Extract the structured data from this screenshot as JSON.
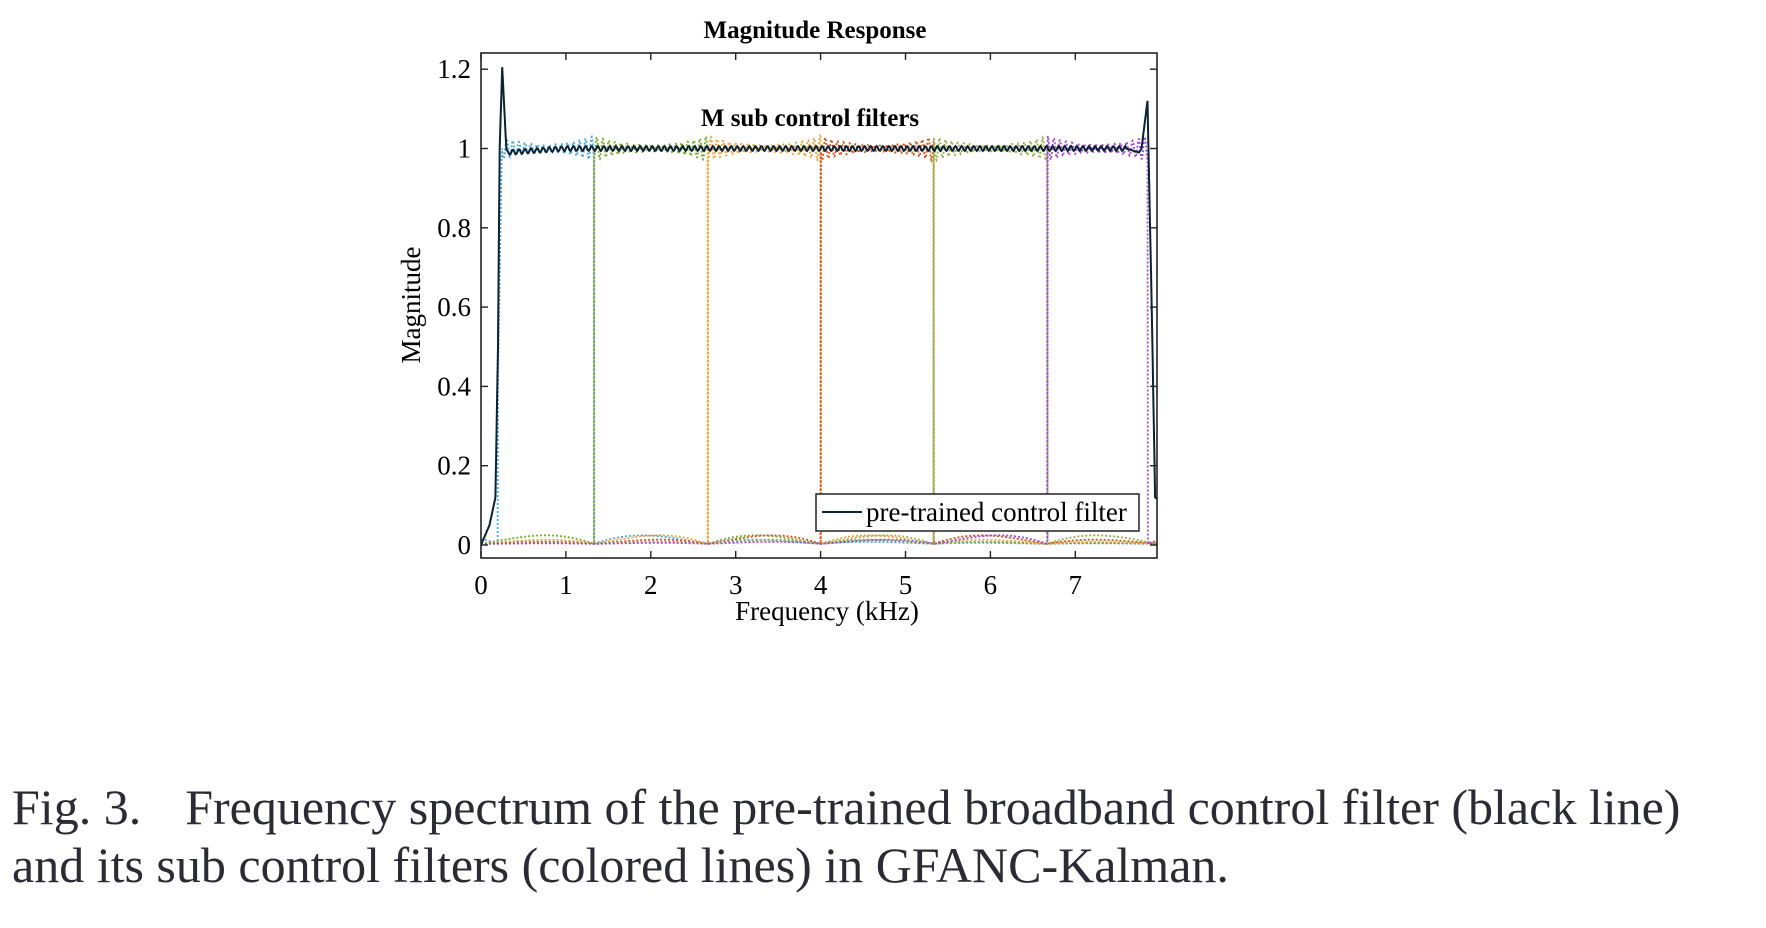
{
  "chart_data": {
    "type": "line",
    "title": "Magnitude Response",
    "xlabel": "Frequency (kHz)",
    "ylabel": "Magnitude",
    "xlim": [
      0,
      8
    ],
    "ylim": [
      -0.03,
      1.24
    ],
    "x_ticks": [
      0,
      1,
      2,
      3,
      4,
      5,
      6,
      7
    ],
    "y_ticks": [
      0,
      0.2,
      0.4,
      0.6,
      0.8,
      1
    ],
    "y_tick_labels": [
      "0",
      "0.2",
      "0.4",
      "0.6",
      "0.8",
      "1",
      "1.2"
    ],
    "y_tick_values": [
      0,
      0.2,
      0.4,
      0.6,
      0.8,
      1,
      1.2
    ],
    "annotation": "M sub control filters",
    "legend": {
      "position": "bottom-right",
      "entries": [
        "pre-trained control filter"
      ]
    },
    "series": [
      {
        "name": "pre-trained control filter",
        "color": "#0b2233",
        "style": "solid",
        "x": [
          0,
          0.1,
          0.17,
          0.2,
          0.22,
          0.25,
          0.3,
          1,
          4,
          7,
          7.6,
          7.75,
          7.78,
          7.85,
          7.9,
          7.94,
          8.0
        ],
        "y": [
          0,
          0.05,
          0.12,
          0.5,
          1.0,
          1.205,
          0.99,
          1.0,
          1.0,
          1.0,
          1.0,
          0.99,
          1.0,
          1.12,
          0.6,
          0.12,
          0.11
        ]
      },
      {
        "color": "#4aa7dd",
        "style": "dotted",
        "band": [
          0.2,
          1.33
        ]
      },
      {
        "color": "#77ac30",
        "style": "dotted",
        "band": [
          1.33,
          2.67
        ]
      },
      {
        "color": "#f0a33a",
        "style": "dotted",
        "band": [
          2.67,
          4.0
        ]
      },
      {
        "color": "#d95319",
        "style": "dotted",
        "band": [
          4.0,
          5.33
        ]
      },
      {
        "color": "#9ab04a",
        "style": "dotted",
        "band": [
          5.33,
          6.67
        ]
      },
      {
        "color": "#a24ad8",
        "style": "dotted",
        "band": [
          6.67,
          7.85
        ]
      }
    ],
    "edges_kHz": [
      1.33,
      2.67,
      4.0,
      5.33,
      6.67
    ],
    "grid": false
  },
  "caption": {
    "label": "Fig. 3.",
    "text": "Frequency spectrum of the pre-trained broadband control filter (black line) and its sub control filters (colored lines) in GFANC-Kalman."
  }
}
